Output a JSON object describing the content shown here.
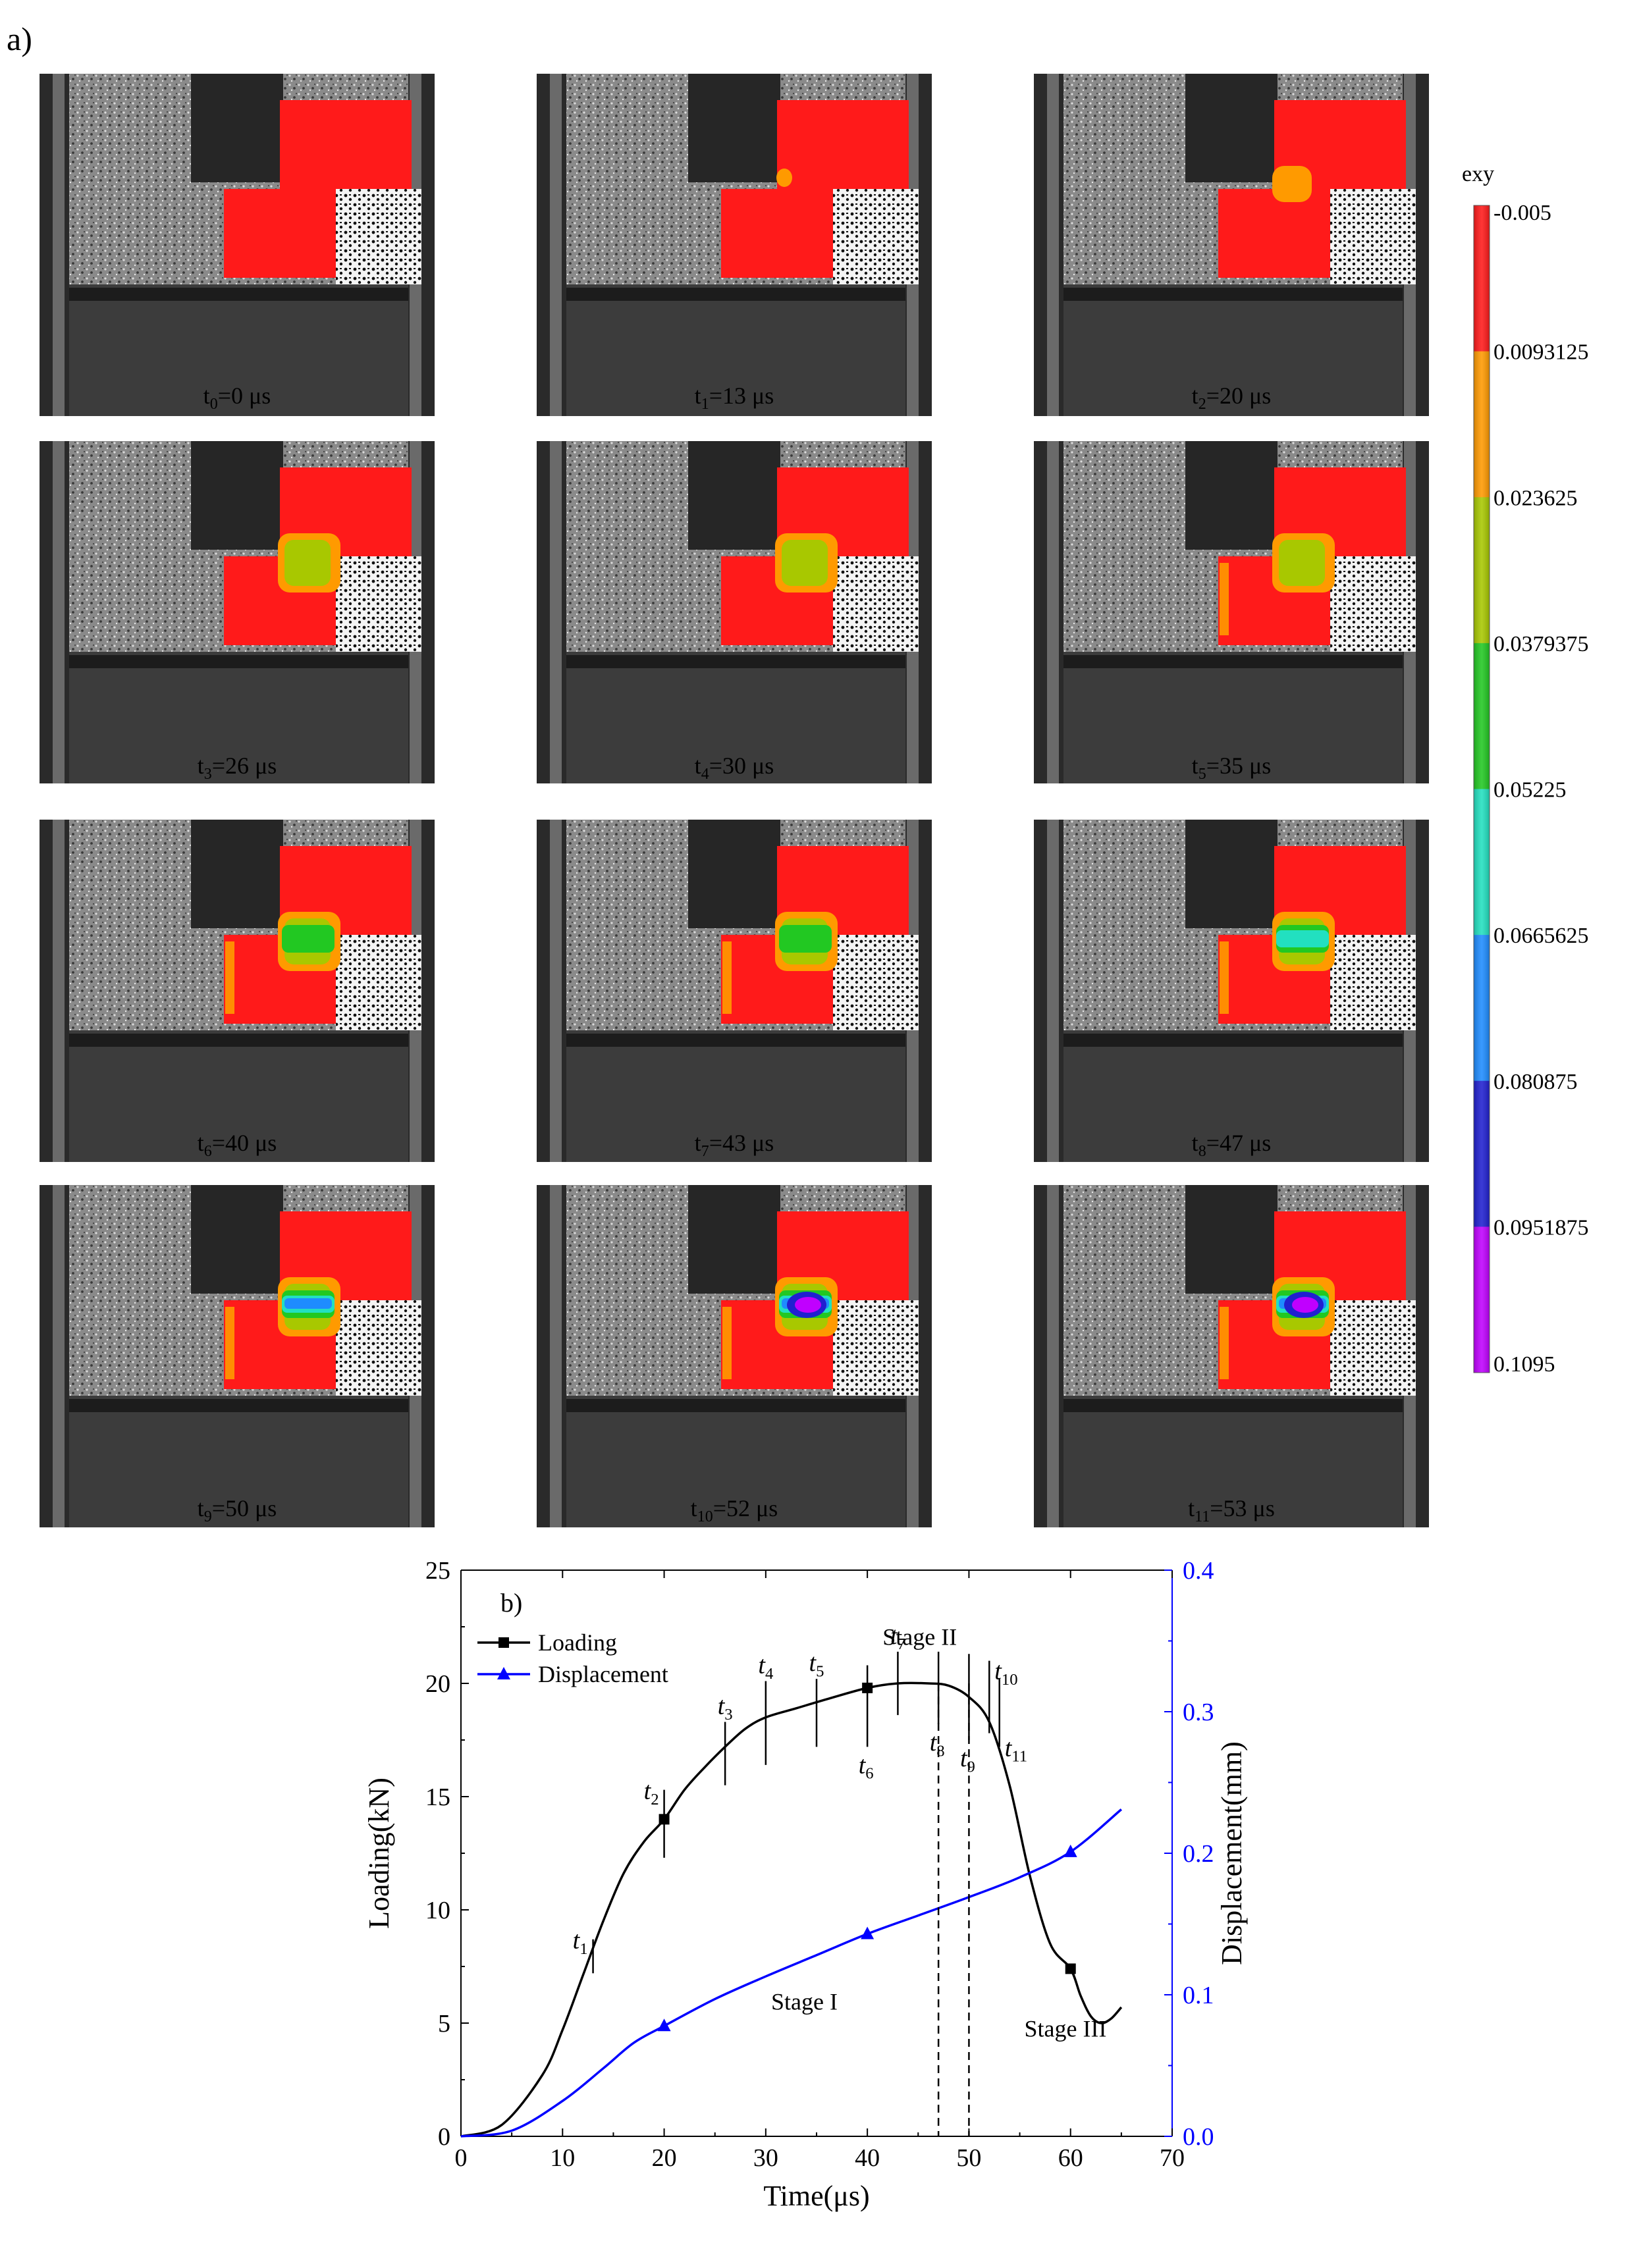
{
  "figure_label_a": "a)",
  "panels": [
    {
      "t_label": "t",
      "t_sub": "0",
      "value": "=0 μs",
      "stage": 0
    },
    {
      "t_label": "t",
      "t_sub": "1",
      "value": "=13 μs",
      "stage": 1
    },
    {
      "t_label": "t",
      "t_sub": "2",
      "value": "=20 μs",
      "stage": 2
    },
    {
      "t_label": "t",
      "t_sub": "3",
      "value": "=26 μs",
      "stage": 3
    },
    {
      "t_label": "t",
      "t_sub": "4",
      "value": "=30 μs",
      "stage": 4
    },
    {
      "t_label": "t",
      "t_sub": "5",
      "value": "=35 μs",
      "stage": 5
    },
    {
      "t_label": "t",
      "t_sub": "6",
      "value": "=40 μs",
      "stage": 6
    },
    {
      "t_label": "t",
      "t_sub": "7",
      "value": "=43 μs",
      "stage": 7
    },
    {
      "t_label": "t",
      "t_sub": "8",
      "value": "=47 μs",
      "stage": 8
    },
    {
      "t_label": "t",
      "t_sub": "9",
      "value": "=50 μs",
      "stage": 9
    },
    {
      "t_label": "t",
      "t_sub": "10",
      "value": "=52 μs",
      "stage": 10
    },
    {
      "t_label": "t",
      "t_sub": "11",
      "value": "=53 μs",
      "stage": 11
    }
  ],
  "colorbar": {
    "title": "exy",
    "ticks": [
      "-0.005",
      "0.0093125",
      "0.023625",
      "0.0379375",
      "0.05225",
      "0.0665625",
      "0.080875",
      "0.0951875",
      "0.1095"
    ],
    "colors": [
      "#ff1a1a",
      "#ff9a00",
      "#a8c800",
      "#22c822",
      "#22e0c0",
      "#1e8cff",
      "#2020d0",
      "#c000ff"
    ]
  },
  "colors": {
    "strain_low": "#ff1a1a",
    "orange": "#ff9a00",
    "yellowgreen": "#a8c800",
    "green": "#22c822",
    "cyan": "#22e0c0",
    "blue": "#1e8cff",
    "navy": "#2020d0",
    "magenta": "#c000ff",
    "loading": "#000000",
    "displacement": "#0000ff"
  },
  "chart_data": {
    "type": "line",
    "panel_label": "b)",
    "xlabel": "Time(μs)",
    "ylabel_left": "Loading(kN)",
    "ylabel_right": "Displacement(mm)",
    "xlim": [
      0,
      70
    ],
    "ylim_left": [
      0,
      25
    ],
    "ylim_right": [
      0,
      0.4
    ],
    "xticks": [
      0,
      10,
      20,
      30,
      40,
      50,
      60,
      70
    ],
    "yticks_left": [
      0,
      5,
      10,
      15,
      20,
      25
    ],
    "yticks_right": [
      0.0,
      0.1,
      0.2,
      0.3,
      0.4
    ],
    "series": [
      {
        "name": "Loading",
        "axis": "left",
        "marker": "square",
        "x": [
          0,
          4,
          8,
          10,
          12,
          14,
          16,
          18,
          20,
          22,
          24,
          26,
          28,
          30,
          33,
          36,
          40,
          43,
          46,
          48,
          50,
          52,
          54,
          56,
          58,
          60,
          61,
          62,
          63,
          64,
          65
        ],
        "y": [
          0,
          0.5,
          2.7,
          4.7,
          7.1,
          9.5,
          11.6,
          13.0,
          14.0,
          15.3,
          16.3,
          17.2,
          18.0,
          18.5,
          18.9,
          19.3,
          19.8,
          20.0,
          20.0,
          19.9,
          19.4,
          18.3,
          15.5,
          11.5,
          8.5,
          7.4,
          6.2,
          5.3,
          5.0,
          5.2,
          5.7
        ],
        "marker_x": [
          20,
          40,
          60
        ]
      },
      {
        "name": "Displacement",
        "axis": "right",
        "marker": "triangle",
        "x": [
          0,
          5,
          10,
          14,
          17,
          20,
          25,
          30,
          35,
          40,
          45,
          50,
          55,
          60,
          65
        ],
        "y": [
          0,
          0.004,
          0.025,
          0.048,
          0.066,
          0.078,
          0.097,
          0.113,
          0.128,
          0.143,
          0.156,
          0.169,
          0.183,
          0.201,
          0.231
        ],
        "marker_x": [
          20,
          40,
          60
        ]
      }
    ],
    "time_marks": [
      {
        "label": "t",
        "sub": "1",
        "x": 13,
        "low": 7.2,
        "high": 8.7,
        "label_side": "left"
      },
      {
        "label": "t",
        "sub": "2",
        "x": 20,
        "low": 12.3,
        "high": 15.3,
        "label_side": "left"
      },
      {
        "label": "t",
        "sub": "3",
        "x": 26,
        "low": 15.5,
        "high": 18.3,
        "label_side": "top"
      },
      {
        "label": "t",
        "sub": "4",
        "x": 30,
        "low": 16.4,
        "high": 20.1,
        "label_side": "top"
      },
      {
        "label": "t",
        "sub": "5",
        "x": 35,
        "low": 17.2,
        "high": 20.2,
        "label_side": "top"
      },
      {
        "label": "t",
        "sub": "6",
        "x": 40,
        "low": 17.2,
        "high": 20.8,
        "label_side": "bottom"
      },
      {
        "label": "t",
        "sub": "7",
        "x": 43,
        "low": 18.6,
        "high": 21.4,
        "label_side": "top"
      },
      {
        "label": "t",
        "sub": "8",
        "x": 47,
        "low": 18.2,
        "high": 21.4,
        "label_side": "bottom"
      },
      {
        "label": "t",
        "sub": "9",
        "x": 50,
        "low": 17.5,
        "high": 21.3,
        "label_side": "bottom"
      },
      {
        "label": "t",
        "sub": "10",
        "x": 52,
        "low": 17.8,
        "high": 21.0,
        "label_side": "right"
      },
      {
        "label": "t",
        "sub": "11",
        "x": 53,
        "low": 17.2,
        "high": 20.2,
        "label_side": "right"
      }
    ],
    "dashed_lines": [
      47,
      50
    ],
    "annotations": [
      "Stage I",
      "Stage II",
      "Stage III"
    ],
    "legend": [
      "Loading",
      "Displacement"
    ],
    "legend_position": "top-left"
  }
}
